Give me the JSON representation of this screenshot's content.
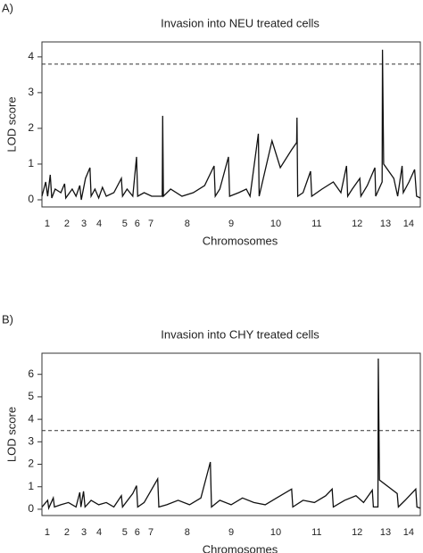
{
  "chart_data": [
    {
      "type": "line",
      "panel": "A)",
      "title": "Invasion into NEU treated cells",
      "ylabel": "LOD score",
      "xlabel": "Chromosomes",
      "xlim": [
        0,
        100
      ],
      "ylim": [
        -0.2,
        4.42
      ],
      "yticks": [
        0,
        1,
        2,
        3,
        4
      ],
      "threshold": 3.8,
      "color": "#111111",
      "chromosomes": [
        {
          "label": "1",
          "position": 1.4
        },
        {
          "label": "2",
          "position": 6.6
        },
        {
          "label": "3",
          "position": 11.1
        },
        {
          "label": "4",
          "position": 15.1
        },
        {
          "label": "5",
          "position": 21.9
        },
        {
          "label": "6",
          "position": 25.2
        },
        {
          "label": "7",
          "position": 28.8
        },
        {
          "label": "8",
          "position": 38.4
        },
        {
          "label": "9",
          "position": 50
        },
        {
          "label": "10",
          "position": 61.8
        },
        {
          "label": "11",
          "position": 72.6
        },
        {
          "label": "12",
          "position": 83.3
        },
        {
          "label": "13",
          "position": 90.8
        },
        {
          "label": "14",
          "position": 96.9
        }
      ],
      "x": [
        0,
        1,
        1.5,
        2.2,
        2.6,
        3.5,
        5,
        6,
        6.3,
        8,
        9,
        10,
        10.4,
        11.5,
        12.7,
        13,
        14,
        15,
        16,
        17,
        19,
        21,
        21.3,
        22.5,
        24,
        25,
        25.3,
        27,
        29,
        31.8,
        31.9,
        32.1,
        34,
        37,
        40,
        43,
        45.5,
        45.8,
        47,
        49.3,
        49.6,
        52,
        54,
        55,
        57.2,
        57.4,
        60.8,
        63,
        66,
        67.3,
        67.4,
        67.6,
        69,
        71,
        71.3,
        74,
        77,
        79,
        80.5,
        80.8,
        82,
        84,
        84.3,
        86,
        88,
        88.2,
        89.9,
        90,
        90.3,
        93,
        94,
        95.2,
        95.5,
        97,
        98.5,
        99,
        100
      ],
      "values": [
        0.1,
        0.5,
        0.1,
        0.7,
        0.05,
        0.3,
        0.2,
        0.45,
        0.05,
        0.3,
        0.1,
        0.4,
        0,
        0.6,
        0.9,
        0.1,
        0.3,
        0.05,
        0.35,
        0.1,
        0.2,
        0.6,
        0.1,
        0.3,
        0.1,
        1.2,
        0.1,
        0.2,
        0.1,
        0.1,
        2.35,
        0.1,
        0.3,
        0.1,
        0.2,
        0.4,
        0.95,
        0.1,
        0.3,
        1.2,
        0.1,
        0.2,
        0.3,
        0.1,
        1.85,
        0.1,
        1.65,
        0.9,
        1.4,
        1.6,
        2.3,
        0.1,
        0.2,
        0.8,
        0.1,
        0.3,
        0.5,
        0.2,
        0.95,
        0.1,
        0.3,
        0.6,
        0.1,
        0.4,
        0.9,
        0.1,
        0.5,
        4.2,
        1.0,
        0.6,
        0.1,
        0.95,
        0.2,
        0.5,
        0.85,
        0.1,
        0.05
      ]
    },
    {
      "type": "line",
      "panel": "B)",
      "title": "Invasion into CHY treated cells",
      "ylabel": "LOD score",
      "xlabel": "Chromosomes",
      "xlim": [
        0,
        100
      ],
      "ylim": [
        -0.28,
        6.94
      ],
      "yticks": [
        0,
        1,
        2,
        3,
        4,
        5,
        6
      ],
      "threshold": 3.5,
      "color": "#111111",
      "chromosomes": [
        {
          "label": "1",
          "position": 1.4
        },
        {
          "label": "2",
          "position": 6.6
        },
        {
          "label": "3",
          "position": 11.1
        },
        {
          "label": "4",
          "position": 15.1
        },
        {
          "label": "5",
          "position": 21.9
        },
        {
          "label": "6",
          "position": 25.2
        },
        {
          "label": "7",
          "position": 28.8
        },
        {
          "label": "8",
          "position": 38.4
        },
        {
          "label": "9",
          "position": 50
        },
        {
          "label": "10",
          "position": 61.8
        },
        {
          "label": "11",
          "position": 72.6
        },
        {
          "label": "12",
          "position": 83.3
        },
        {
          "label": "13",
          "position": 90.8
        },
        {
          "label": "14",
          "position": 96.9
        }
      ],
      "x": [
        0,
        1.5,
        1.8,
        3,
        3.3,
        5,
        7,
        9,
        10,
        10.3,
        11,
        11.4,
        13,
        15,
        17,
        19,
        21,
        21.3,
        24,
        25,
        25.3,
        27,
        30.6,
        30.9,
        33,
        36,
        39,
        42,
        44.5,
        44.8,
        47,
        50,
        53,
        56,
        59,
        62,
        66,
        66.3,
        69,
        72,
        75,
        76.7,
        77,
        80,
        83,
        85,
        87.3,
        87.6,
        88.8,
        88.9,
        89.2,
        93.9,
        94.2,
        96,
        98.8,
        99.1,
        100
      ],
      "values": [
        0.1,
        0.4,
        0.05,
        0.5,
        0.1,
        0.2,
        0.3,
        0.1,
        0.75,
        0.1,
        0.8,
        0.1,
        0.4,
        0.2,
        0.3,
        0.1,
        0.6,
        0.1,
        0.7,
        1.05,
        0.1,
        0.3,
        1.35,
        0.1,
        0.2,
        0.4,
        0.2,
        0.5,
        2.1,
        0.1,
        0.4,
        0.2,
        0.5,
        0.3,
        0.2,
        0.5,
        0.9,
        0.1,
        0.4,
        0.3,
        0.6,
        0.9,
        0.1,
        0.4,
        0.6,
        0.3,
        0.85,
        0.1,
        0.1,
        6.7,
        1.3,
        0.7,
        0.1,
        0.4,
        0.9,
        0.1,
        0.05
      ]
    }
  ]
}
